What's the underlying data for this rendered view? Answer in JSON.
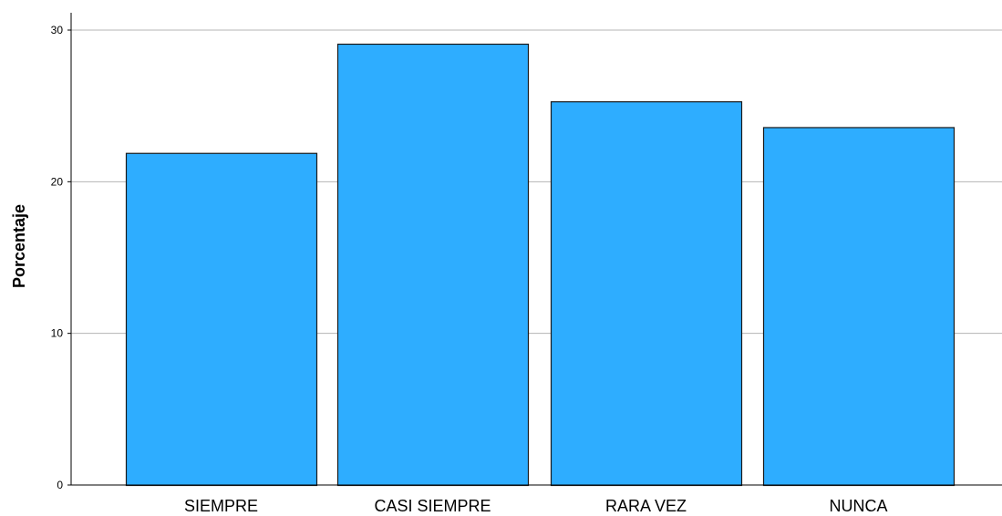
{
  "chart_data": {
    "type": "bar",
    "title": "",
    "xlabel": "",
    "ylabel": "Porcentaje",
    "categories": [
      "SIEMPRE",
      "CASI SIEMPRE",
      "RARA VEZ",
      "NUNCA"
    ],
    "values": [
      21.9,
      29.1,
      25.3,
      23.6
    ],
    "ylim": [
      0,
      30
    ],
    "yticks": [
      0,
      10,
      20,
      30
    ],
    "ytick_labels": [
      "0",
      "10",
      "20",
      "30"
    ],
    "grid": true,
    "legend": "none"
  },
  "colors": {
    "bar_fill": "#2EADFF",
    "bar_stroke": "#1a1a1a",
    "grid": "#b5b5b5",
    "axis": "#000000"
  }
}
